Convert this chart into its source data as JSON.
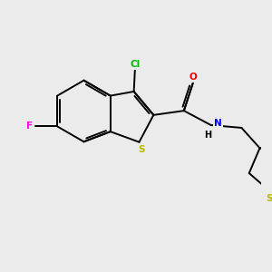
{
  "background_color": "#ebebeb",
  "bond_color": "#000000",
  "atom_colors": {
    "S": "#b8b800",
    "F": "#ff00ff",
    "Cl": "#00bb00",
    "N": "#0000ee",
    "O": "#ee0000",
    "C": "#000000",
    "H": "#000000"
  },
  "figsize": [
    3.0,
    3.0
  ],
  "dpi": 100,
  "lw": 1.4,
  "fs": 7.5
}
